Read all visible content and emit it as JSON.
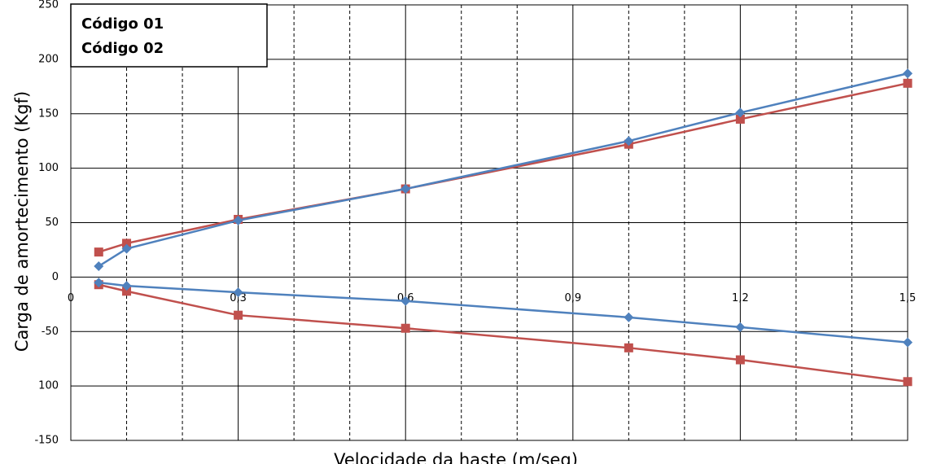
{
  "chart_data": {
    "type": "line",
    "y_label": "Carga de amortecimento (Kgf)",
    "x_label": "Velocidade da haste (m/seg)",
    "series": [
      {
        "name": "Código 01",
        "color": "#c0504d",
        "legend_color": "#c00000",
        "marker": "square",
        "x": [
          0.05,
          0.1,
          0.3,
          0.6,
          1.0,
          1.2,
          1.5
        ],
        "values": [
          23,
          31,
          53,
          81,
          122,
          145,
          178
        ],
        "values_lower": [
          -7,
          -13,
          -35,
          -47,
          -65,
          -76,
          -96
        ]
      },
      {
        "name": "Código 02",
        "color": "#4f81bd",
        "legend_color": "#4472c4",
        "marker": "diamond",
        "x": [
          0.05,
          0.1,
          0.3,
          0.6,
          1.0,
          1.2,
          1.5
        ],
        "values": [
          10,
          26,
          52,
          81,
          125,
          151,
          187
        ],
        "values_lower": [
          -5,
          -8,
          -14,
          -22,
          -37,
          -46,
          -60
        ]
      }
    ],
    "xlim": [
      0,
      1.5
    ],
    "xticks": [
      {
        "value": 0,
        "label": "0"
      },
      {
        "value": 0.3,
        "label": "0,3"
      },
      {
        "value": 0.6,
        "label": "0,6"
      },
      {
        "value": 0.9,
        "label": "0,9"
      },
      {
        "value": 1.2,
        "label": "1,2"
      },
      {
        "value": 1.5,
        "label": "1,5"
      }
    ],
    "xminorticks": [
      0.1,
      0.2,
      0.4,
      0.5,
      0.7,
      0.8,
      1.0,
      1.1,
      1.3,
      1.4
    ],
    "ylim": [
      -150,
      250
    ],
    "yticks": [
      250,
      200,
      150,
      100,
      50,
      0,
      -50,
      {
        "value": -100,
        "label": "100"
      },
      -150
    ],
    "grid": true,
    "legend_position": "upper left"
  }
}
